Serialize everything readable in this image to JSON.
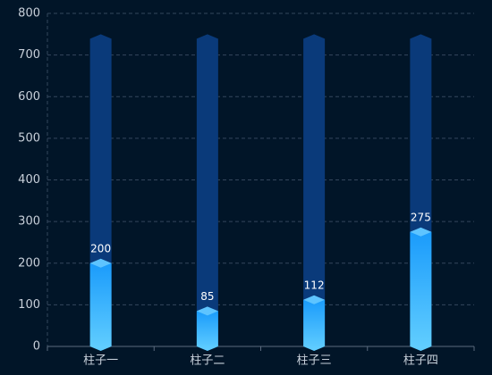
{
  "chart_data": {
    "type": "bar",
    "categories": [
      "柱子一",
      "柱子二",
      "柱子三",
      "柱子四"
    ],
    "values": [
      200,
      85,
      112,
      275
    ],
    "background": {
      "color": "#0a3a7a",
      "values": [
        750,
        750,
        750,
        750
      ]
    },
    "color": "#1a9bfb",
    "ylim": [
      0,
      800
    ],
    "yticks": [
      0,
      100,
      200,
      300,
      400,
      500,
      600,
      700,
      800
    ],
    "grid": true
  }
}
